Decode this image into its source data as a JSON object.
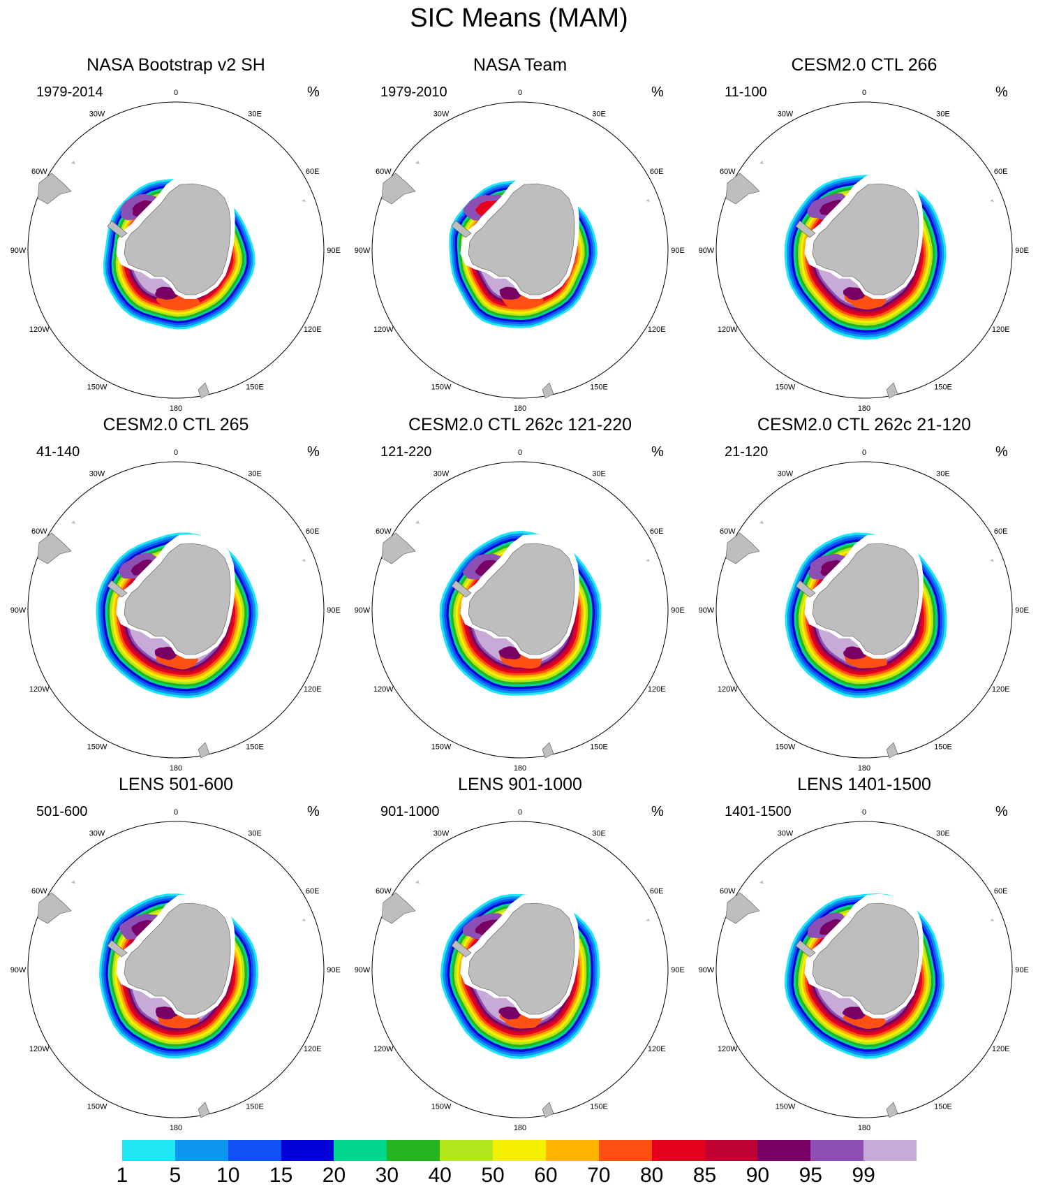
{
  "title": "SIC Means (MAM)",
  "units": "%",
  "longitude_labels": [
    "0",
    "30E",
    "60E",
    "90E",
    "120E",
    "150E",
    "180",
    "150W",
    "120W",
    "90W",
    "60W",
    "30W"
  ],
  "panels": [
    {
      "title": "NASA Bootstrap v2 SH",
      "years": "1979-2014",
      "kind": "obs1"
    },
    {
      "title": "NASA Team",
      "years": "1979-2010",
      "kind": "obs2"
    },
    {
      "title": "CESM2.0 CTL 266",
      "years": "11-100",
      "kind": "cesm"
    },
    {
      "title": "CESM2.0 CTL 265",
      "years": "41-140",
      "kind": "cesm"
    },
    {
      "title": "CESM2.0 CTL 262c 121-220",
      "years": "121-220",
      "kind": "cesm"
    },
    {
      "title": "CESM2.0 CTL 262c 21-120",
      "years": "21-120",
      "kind": "cesm"
    },
    {
      "title": "LENS 501-600",
      "years": "501-600",
      "kind": "lens"
    },
    {
      "title": "LENS 901-1000",
      "years": "901-1000",
      "kind": "lens"
    },
    {
      "title": "LENS 1401-1500",
      "years": "1401-1500",
      "kind": "lens"
    }
  ],
  "colorbar": {
    "labels": [
      "1",
      "5",
      "10",
      "15",
      "20",
      "30",
      "40",
      "50",
      "60",
      "70",
      "80",
      "85",
      "90",
      "95",
      "99"
    ],
    "colors": [
      "#1ee6f5",
      "#0c96f0",
      "#1150f5",
      "#0000d7",
      "#00d78c",
      "#23b41e",
      "#b4e61e",
      "#f5f000",
      "#ffb400",
      "#ff5014",
      "#e6001e",
      "#be0032",
      "#780064",
      "#8c50b4",
      "#c8aad7"
    ]
  }
}
